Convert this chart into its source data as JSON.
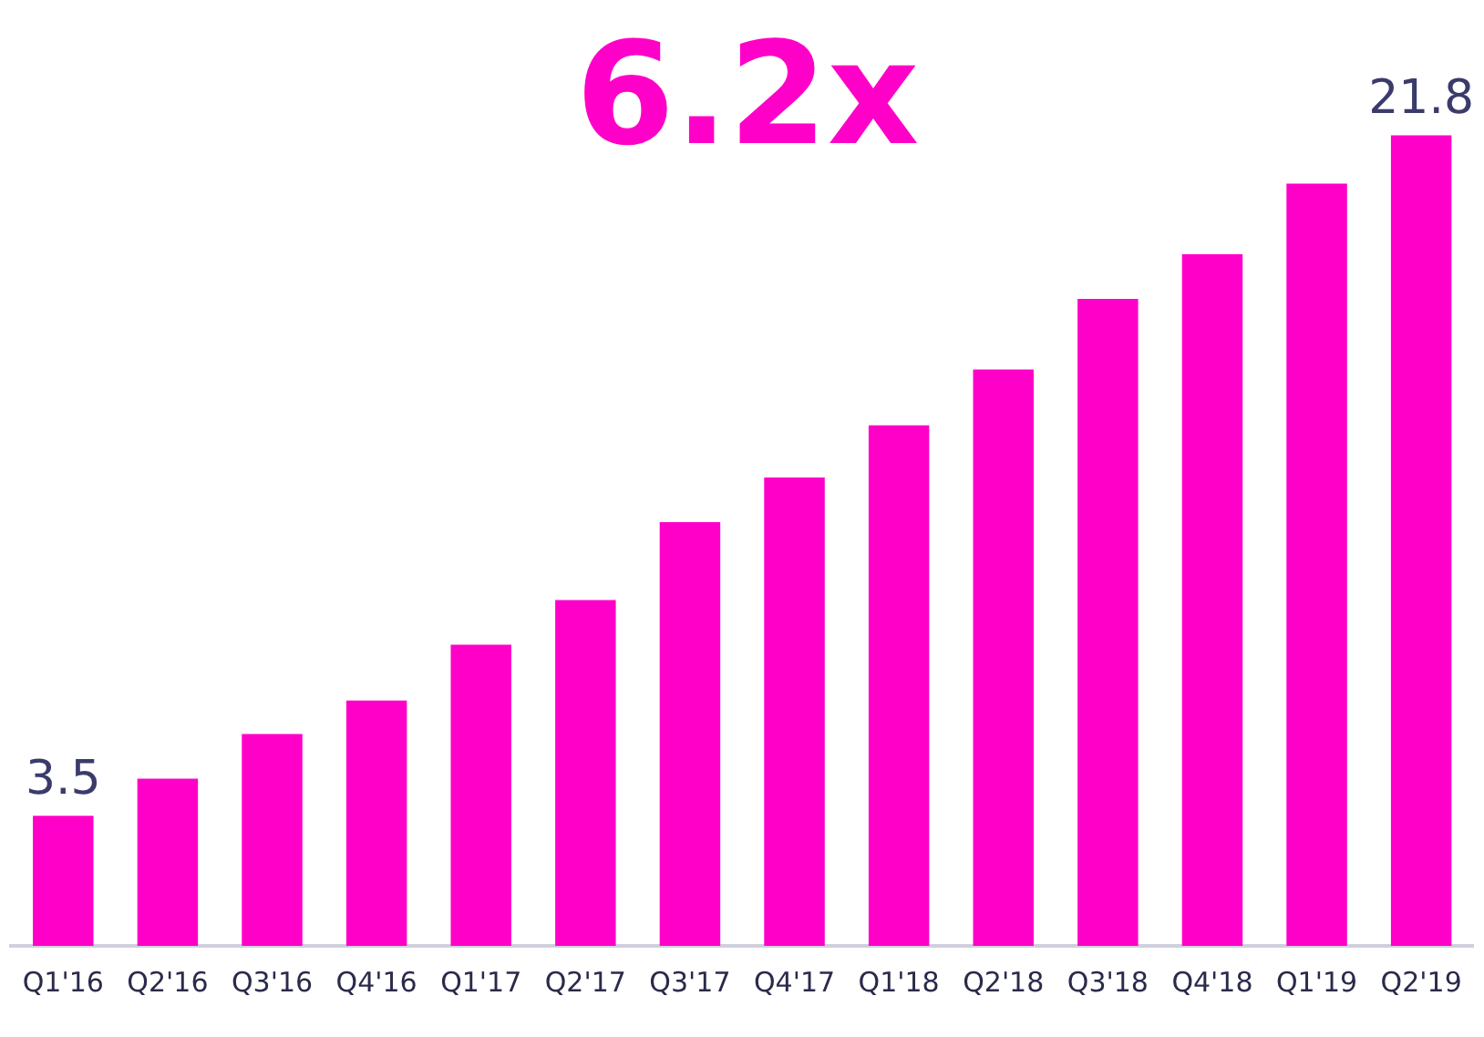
{
  "chart_data": {
    "type": "bar",
    "title": "6.2x",
    "categories": [
      "Q1'16",
      "Q2'16",
      "Q3'16",
      "Q4'16",
      "Q1'17",
      "Q2'17",
      "Q3'17",
      "Q4'17",
      "Q1'18",
      "Q2'18",
      "Q3'18",
      "Q4'18",
      "Q1'19",
      "Q2'19"
    ],
    "values": [
      3.5,
      4.5,
      5.7,
      6.6,
      8.1,
      9.3,
      11.4,
      12.6,
      14.0,
      15.5,
      17.4,
      18.6,
      20.5,
      21.8
    ],
    "value_labels": [
      "3.5",
      null,
      null,
      null,
      null,
      null,
      null,
      null,
      null,
      null,
      null,
      null,
      null,
      "21.8"
    ],
    "color": "#ff00c8",
    "tick_labels": "x",
    "grid": false,
    "legend": false
  }
}
